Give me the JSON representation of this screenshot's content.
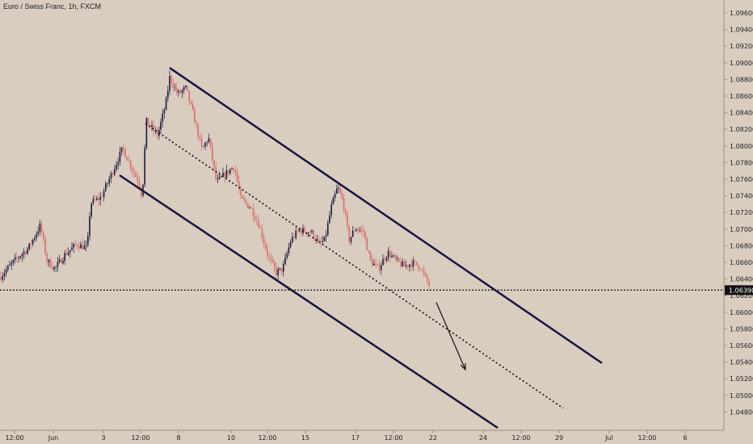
{
  "header": {
    "symbol_title": "Euro / Swiss Franc, 1h, FXCM"
  },
  "colors": {
    "background": "#d8cdbf",
    "up_candle": "#1c1a40",
    "down_candle": "#e06a6a",
    "channel": "#1a1440",
    "axis_text": "#222222"
  },
  "chart_data": {
    "type": "candlestick",
    "ylim": [
      1.0471,
      1.0977
    ],
    "y_ticks": [
      "1.09600",
      "1.09400",
      "1.09200",
      "1.09000",
      "1.08800",
      "1.08600",
      "1.08400",
      "1.08200",
      "1.08000",
      "1.07800",
      "1.07600",
      "1.07400",
      "1.07200",
      "1.07000",
      "1.06800",
      "1.06600",
      "1.06400",
      "1.06200",
      "1.06000",
      "1.05800",
      "1.05600",
      "1.05400",
      "1.05200",
      "1.05000",
      "1.04800"
    ],
    "x_ticks": [
      "12:00",
      "Jun",
      "3",
      "12:00",
      "8",
      "10",
      "12:00",
      "15",
      "17",
      "12:00",
      "22",
      "24",
      "12:00",
      "29",
      "Jul",
      "12:00",
      "6"
    ],
    "current_price": "1.06390",
    "price_path": [
      [
        0,
        1.0655
      ],
      [
        20,
        1.0677
      ],
      [
        35,
        1.069
      ],
      [
        50,
        1.0718
      ],
      [
        58,
        1.0675
      ],
      [
        68,
        1.0665
      ],
      [
        80,
        1.0682
      ],
      [
        95,
        1.0695
      ],
      [
        108,
        1.069
      ],
      [
        112,
        1.0745
      ],
      [
        125,
        1.0752
      ],
      [
        140,
        1.0785
      ],
      [
        152,
        1.0812
      ],
      [
        162,
        1.079
      ],
      [
        172,
        1.077
      ],
      [
        176,
        1.0752
      ],
      [
        181,
        1.0845
      ],
      [
        195,
        1.0828
      ],
      [
        205,
        1.0865
      ],
      [
        210,
        1.0898
      ],
      [
        220,
        1.0878
      ],
      [
        230,
        1.0885
      ],
      [
        240,
        1.085
      ],
      [
        250,
        1.081
      ],
      [
        258,
        1.0825
      ],
      [
        268,
        1.077
      ],
      [
        278,
        1.078
      ],
      [
        290,
        1.079
      ],
      [
        298,
        1.075
      ],
      [
        310,
        1.074
      ],
      [
        320,
        1.072
      ],
      [
        332,
        1.068
      ],
      [
        342,
        1.066
      ],
      [
        350,
        1.0665
      ],
      [
        360,
        1.07
      ],
      [
        370,
        1.0712
      ],
      [
        385,
        1.071
      ],
      [
        395,
        1.0695
      ],
      [
        402,
        1.07
      ],
      [
        410,
        1.074
      ],
      [
        418,
        1.0765
      ],
      [
        425,
        1.0745
      ],
      [
        432,
        1.07
      ],
      [
        440,
        1.0715
      ],
      [
        450,
        1.071
      ],
      [
        458,
        1.0675
      ],
      [
        468,
        1.0665
      ],
      [
        480,
        1.0685
      ],
      [
        490,
        1.0675
      ],
      [
        500,
        1.0668
      ],
      [
        510,
        1.0672
      ],
      [
        520,
        1.0668
      ],
      [
        528,
        1.065
      ],
      [
        533,
        1.0643
      ]
    ],
    "channel_upper": [
      [
        1,
        1.091
      ],
      [
        2,
        1.055
      ]
    ],
    "channel_mid": [
      [
        1,
        1.0842
      ],
      [
        2,
        1.0495
      ]
    ],
    "channel_lower": [
      [
        1,
        1.0779
      ],
      [
        2,
        1.0471
      ]
    ],
    "forecast_arrow": {
      "from": 1.0624,
      "to": 1.0542
    }
  }
}
